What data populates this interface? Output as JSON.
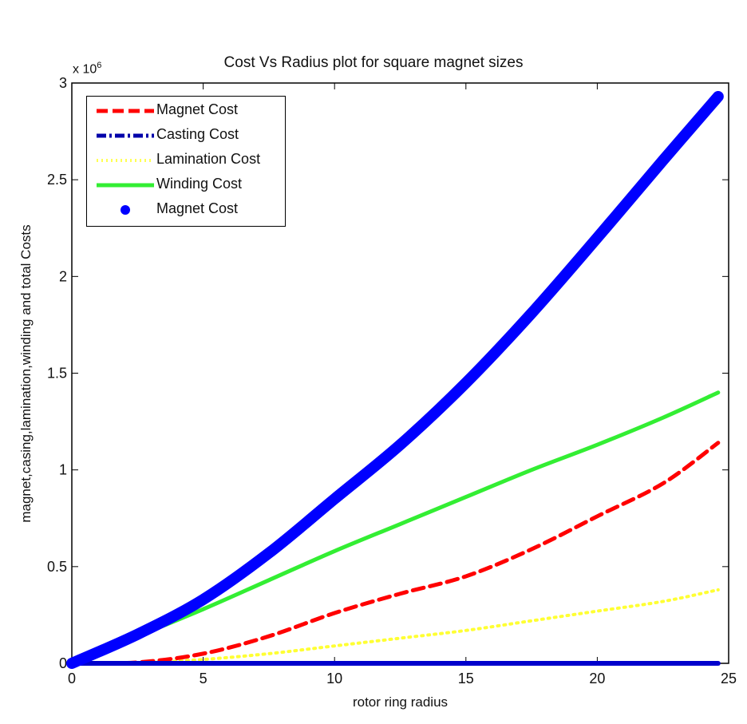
{
  "chart_data": {
    "type": "line",
    "title": "Cost Vs Radius plot for square magnet sizes",
    "xlabel": "rotor ring radius",
    "ylabel": "magnet,casing,lamination,winding and total Costs",
    "y_exponent_label": "x 10",
    "y_exponent": "6",
    "xlim": [
      0,
      25
    ],
    "ylim": [
      0,
      3000000
    ],
    "xticks": [
      "0",
      "5",
      "10",
      "15",
      "20",
      "25"
    ],
    "yticks": [
      "0",
      "0.5",
      "1",
      "1.5",
      "2",
      "2.5",
      "3"
    ],
    "grid": false,
    "legend_position": "upper left",
    "x": [
      0,
      2.5,
      5,
      7.5,
      10,
      12.5,
      15,
      17.5,
      20,
      22.5,
      24.6
    ],
    "series": [
      {
        "name": "Magnet Cost",
        "style": "dashed",
        "color": "#ff0000",
        "values": [
          0,
          5000,
          50000,
          140000,
          260000,
          360000,
          450000,
          590000,
          760000,
          930000,
          1140000
        ]
      },
      {
        "name": "Casting Cost",
        "style": "dash-dot",
        "color": "#0000cc",
        "values": [
          0,
          0,
          0,
          0,
          0,
          0,
          0,
          0,
          0,
          0,
          0
        ]
      },
      {
        "name": "Lamination Cost",
        "style": "dotted",
        "color": "#ffff33",
        "values": [
          0,
          2000,
          20000,
          50000,
          90000,
          130000,
          170000,
          220000,
          270000,
          320000,
          380000
        ]
      },
      {
        "name": "Winding Cost",
        "style": "solid",
        "color": "#33ee33",
        "values": [
          0,
          140000,
          280000,
          430000,
          580000,
          720000,
          860000,
          1000000,
          1130000,
          1270000,
          1400000
        ]
      },
      {
        "name": "Magnet Cost",
        "style": "markers",
        "color": "#0000ff",
        "values": [
          0,
          150000,
          330000,
          570000,
          850000,
          1130000,
          1450000,
          1810000,
          2200000,
          2600000,
          2930000
        ]
      }
    ]
  },
  "legend": {
    "items": [
      {
        "label": "Magnet Cost"
      },
      {
        "label": "Casting Cost"
      },
      {
        "label": "Lamination Cost"
      },
      {
        "label": "Winding Cost"
      },
      {
        "label": "Magnet Cost"
      }
    ]
  }
}
